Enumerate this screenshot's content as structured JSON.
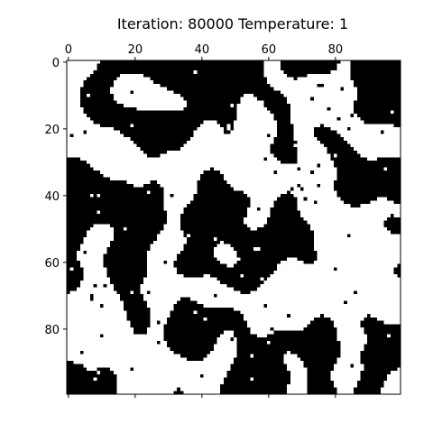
{
  "chart_data": {
    "type": "heatmap",
    "title": "Iteration: 80000 Temperature: 1",
    "grid_size": 100,
    "x_ticks": [
      0,
      20,
      40,
      60,
      80
    ],
    "y_ticks": [
      0,
      20,
      40,
      60,
      80
    ],
    "xlim": [
      -0.5,
      99.5
    ],
    "ylim": [
      99.5,
      -0.5
    ],
    "x_axis_position": "top",
    "colormap": "binary",
    "values_legend": {
      "-1": "white",
      "1": "black"
    },
    "grid": false,
    "colors": {
      "spin_up": "#000000",
      "spin_down": "#ffffff",
      "axes": "#000000",
      "background": "#ffffff"
    }
  }
}
